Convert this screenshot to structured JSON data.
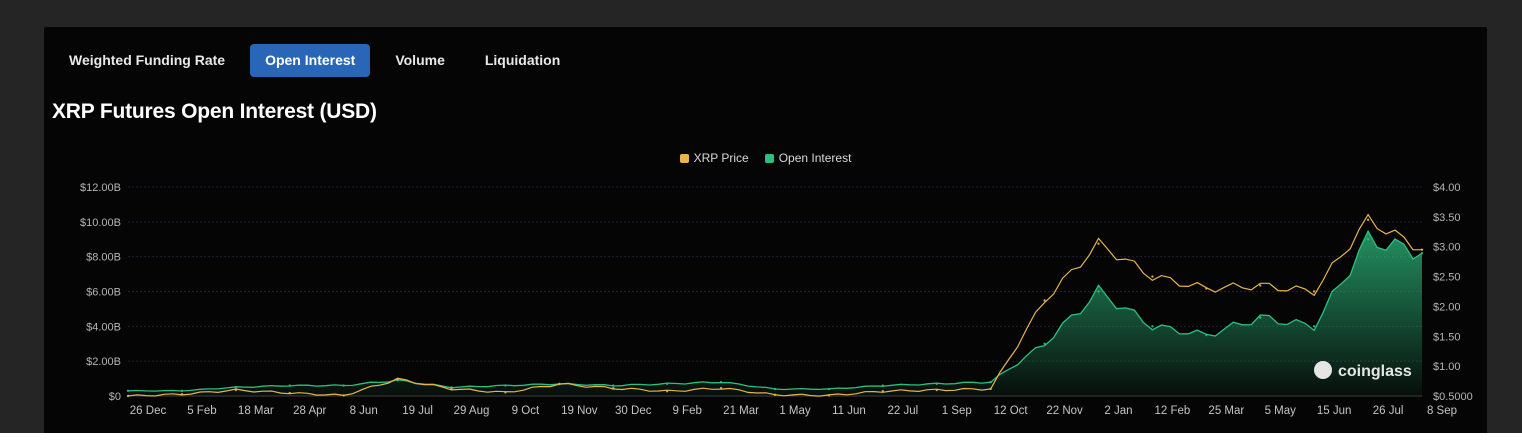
{
  "tabs": [
    {
      "label": "Weighted Funding Rate",
      "active": false
    },
    {
      "label": "Open Interest",
      "active": true
    },
    {
      "label": "Volume",
      "active": false
    },
    {
      "label": "Liquidation",
      "active": false
    }
  ],
  "colors": {
    "accent": "#2a66b8",
    "price": "#e9b44c",
    "open_interest": "#2dbf7f",
    "background": "#050505"
  },
  "watermark": "coinglass",
  "chart_data": {
    "type": "area",
    "title": "XRP Futures Open Interest (USD)",
    "legend": {
      "placement": "top-center"
    },
    "grid": true,
    "x": [
      "26 Dec",
      "5 Feb",
      "18 Mar",
      "28 Apr",
      "8 Jun",
      "19 Jul",
      "29 Aug",
      "9 Oct",
      "19 Nov",
      "30 Dec",
      "9 Feb",
      "21 Mar",
      "1 May",
      "11 Jun",
      "22 Jul",
      "1 Sep",
      "12 Oct",
      "22 Nov",
      "2 Jan",
      "12 Feb",
      "25 Mar",
      "5 May",
      "15 Jun",
      "26 Jul",
      "8 Sep"
    ],
    "y_left": {
      "ylim": [
        0,
        12
      ],
      "ticks": [
        "$0",
        "$2.00B",
        "$4.00B",
        "$6.00B",
        "$8.00B",
        "$10.00B",
        "$12.00B"
      ]
    },
    "y_right": {
      "ylim": [
        0.5,
        4.0
      ],
      "ticks": [
        "$0.5000",
        "$1.00",
        "$1.50",
        "$2.00",
        "$2.50",
        "$3.00",
        "$3.50",
        "$4.00"
      ]
    },
    "series": [
      {
        "name": "XRP Price",
        "axis": "right",
        "values": [
          0.5,
          0.53,
          0.6,
          0.55,
          0.51,
          0.78,
          0.62,
          0.56,
          0.7,
          0.63,
          0.58,
          0.63,
          0.52,
          0.51,
          0.58,
          0.6,
          0.62,
          2.1,
          3.05,
          2.5,
          2.3,
          2.35,
          2.25,
          3.45,
          2.95
        ]
      },
      {
        "name": "Open Interest",
        "axis": "left",
        "values": [
          0.3,
          0.3,
          0.5,
          0.6,
          0.6,
          0.9,
          0.5,
          0.6,
          0.7,
          0.6,
          0.7,
          0.8,
          0.4,
          0.4,
          0.6,
          0.7,
          0.8,
          3.0,
          6.0,
          4.0,
          3.5,
          4.5,
          4.0,
          9.0,
          8.2
        ]
      }
    ]
  }
}
